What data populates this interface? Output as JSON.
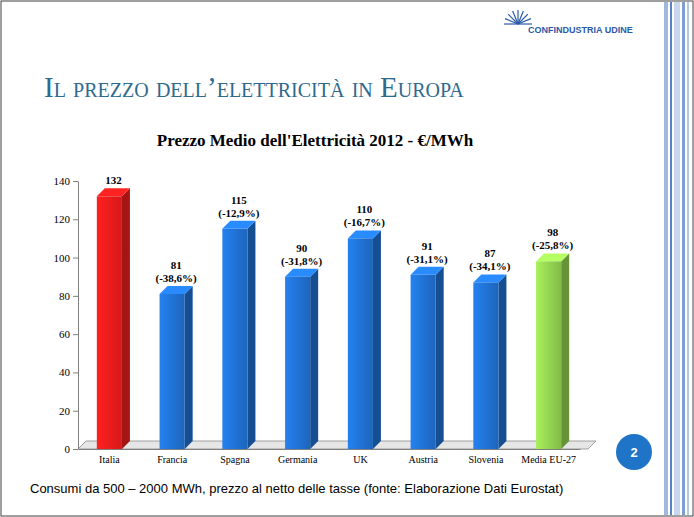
{
  "slide": {
    "title": "Il prezzo dell’elettricità in Europa",
    "logo": "CONFINDUSTRIA UDINE",
    "page": "2",
    "footnote": "Consumi da 500 – 2000 MWh, prezzo al netto delle tasse (fonte: Elaborazione Dati Eurostat)"
  },
  "chart_data": {
    "type": "bar",
    "title": "Prezzo Medio dell'Elettricità 2012 - €/MWh",
    "categories": [
      "Italia",
      "Francia",
      "Spagna",
      "Germania",
      "UK",
      "Austria",
      "Slovenia",
      "Media EU-27"
    ],
    "values": [
      132,
      81,
      115,
      90,
      110,
      91,
      87,
      98
    ],
    "colors": [
      "#ee1c1c",
      "#2070d0",
      "#2070d0",
      "#2070d0",
      "#2070d0",
      "#2070d0",
      "#2070d0",
      "#92d050"
    ],
    "difference_labels": [
      null,
      "(-38,6%)",
      "(-12,9%)",
      "(-31,8%)",
      "(-16,7%)",
      "(-31,1%)",
      "(-34,1%)",
      "(-25,8%)"
    ],
    "ylim": [
      0,
      140
    ],
    "yticks": [
      0,
      20,
      40,
      60,
      80,
      100,
      120,
      140
    ],
    "data_labels": true,
    "grid": false
  }
}
